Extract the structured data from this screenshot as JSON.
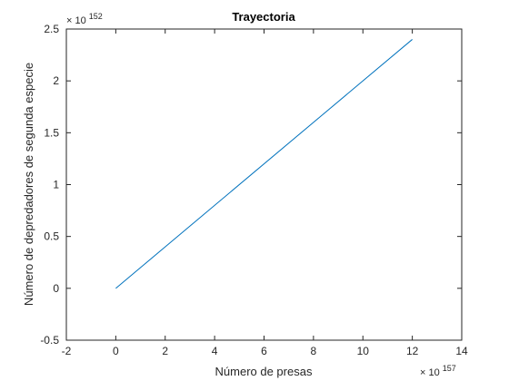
{
  "chart_data": {
    "type": "line",
    "title": "Trayectoria",
    "xlabel": "Número de presas",
    "ylabel": "Número de depredadores de segunda especie",
    "x_exponent_label": "10",
    "x_exponent_power": "157",
    "y_exponent_label": "10",
    "y_exponent_power": "152",
    "xlim": [
      -2,
      14
    ],
    "ylim": [
      -0.5,
      2.5
    ],
    "xticks": [
      "-2",
      "0",
      "2",
      "4",
      "6",
      "8",
      "10",
      "12",
      "14"
    ],
    "yticks": [
      "-0.5",
      "0",
      "0.5",
      "1",
      "1.5",
      "2",
      "2.5"
    ],
    "grid": false,
    "series": [
      {
        "color": "#0072BD",
        "x": [
          0,
          12
        ],
        "y": [
          0,
          2.4
        ]
      }
    ]
  }
}
